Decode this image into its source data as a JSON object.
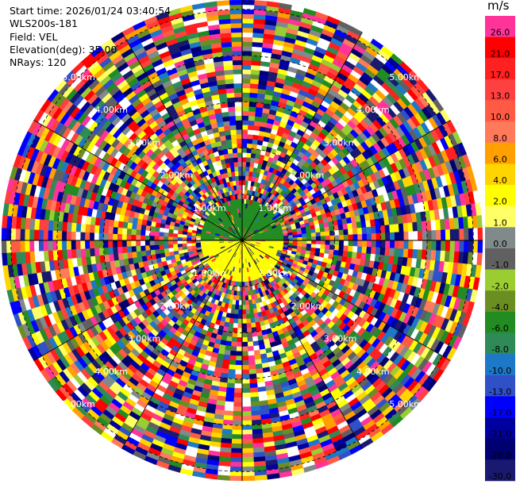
{
  "header": {
    "start_time": "Start time: 2026/01/24 03:40:54",
    "instrument": "WLS200s-181",
    "field": "Field: VEL",
    "elevation": "Elevation(deg): 35.00",
    "nrays": "NRays: 120"
  },
  "colorbar": {
    "title": "m/s",
    "bins": [
      {
        "label": "26.0",
        "color": "#ff3399"
      },
      {
        "label": "21.0",
        "color": "#ff0000"
      },
      {
        "label": "17.0",
        "color": "#ff2020"
      },
      {
        "label": "13.0",
        "color": "#ff4040"
      },
      {
        "label": "10.0",
        "color": "#ff5a44"
      },
      {
        "label": "8.0",
        "color": "#ff7a5a"
      },
      {
        "label": "6.0",
        "color": "#ffa000"
      },
      {
        "label": "4.0",
        "color": "#ffd400"
      },
      {
        "label": "2.0",
        "color": "#ffff00"
      },
      {
        "label": "1.0",
        "color": "#ffff66"
      },
      {
        "label": "0.0",
        "color": "#808a8a"
      },
      {
        "label": "-1.0",
        "color": "#606060"
      },
      {
        "label": "-2.0",
        "color": "#9acd32"
      },
      {
        "label": "-4.0",
        "color": "#6b8e23"
      },
      {
        "label": "-6.0",
        "color": "#228b22"
      },
      {
        "label": "-8.0",
        "color": "#2e8b57"
      },
      {
        "label": "-10.0",
        "color": "#1e78c8"
      },
      {
        "label": "-13.0",
        "color": "#3050c8"
      },
      {
        "label": "-17.0",
        "color": "#0000ff"
      },
      {
        "label": "-21.0",
        "color": "#0000a0"
      },
      {
        "label": "-26.0",
        "color": "#000070"
      },
      {
        "label": "-30.0",
        "color": "#191970"
      }
    ]
  },
  "chart_data": {
    "type": "heatmap",
    "projection": "polar PPI",
    "field": "VEL",
    "units": "m/s",
    "n_rays": 120,
    "elevation_deg": 35.0,
    "max_range_km": 5.2,
    "range_rings_km": [
      1.0,
      2.0,
      3.0,
      4.0,
      5.0
    ],
    "ring_labels": [
      "1.00km",
      "2.00km",
      "3.00km",
      "4.00km",
      "5.00km"
    ],
    "spokes_deg": [
      0,
      30,
      60,
      90,
      120,
      150,
      180,
      210,
      240,
      270,
      300,
      330
    ],
    "near_field": {
      "range_km": [
        0.0,
        0.95
      ],
      "northern_half_velocity_ms": -5.0,
      "southern_half_velocity_ms": 2.0
    },
    "far_field": "noisy velocities spanning -30.0 to 26.0 m/s"
  }
}
